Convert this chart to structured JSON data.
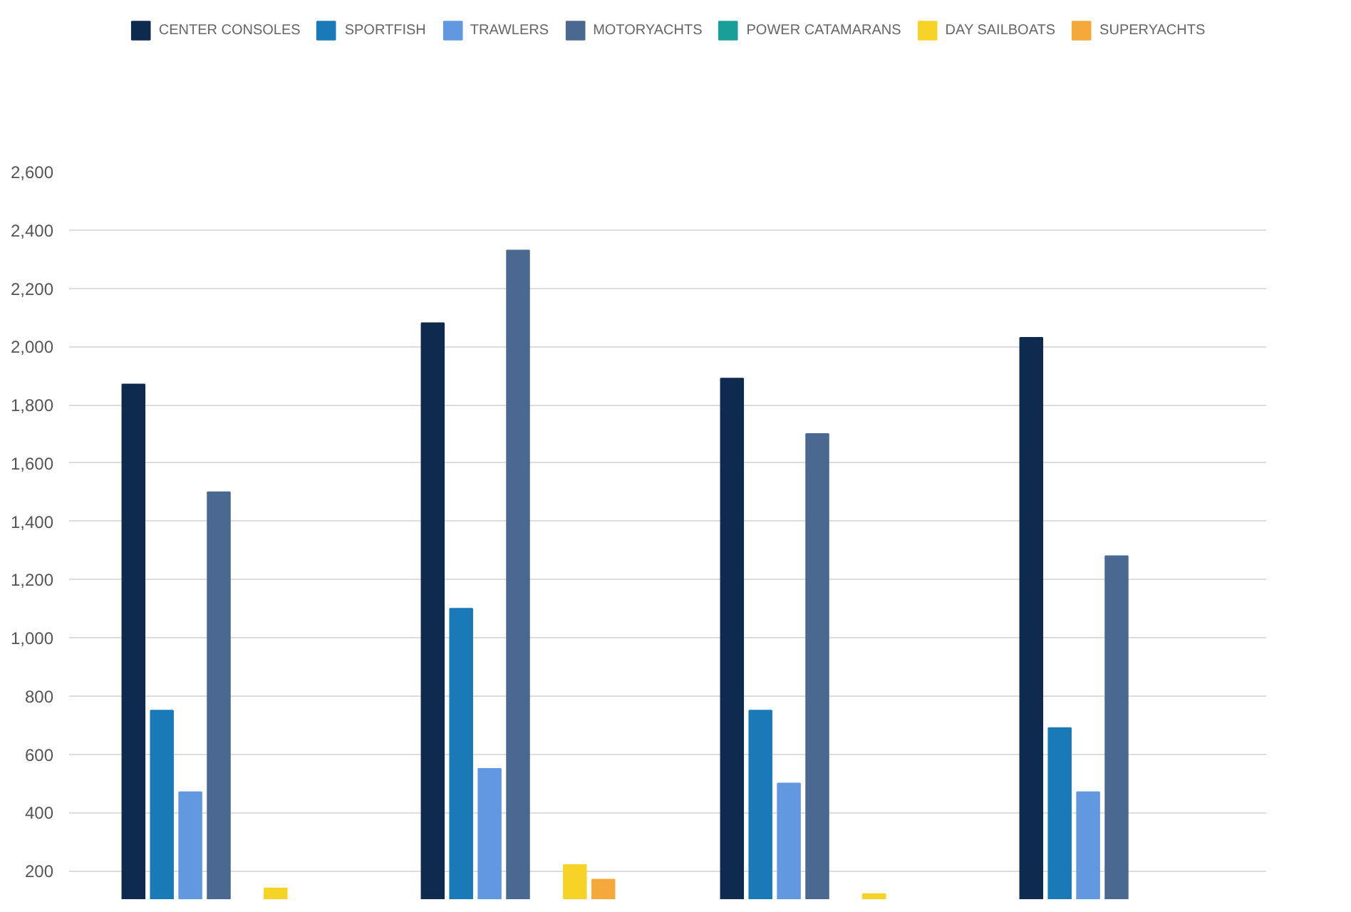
{
  "chart_data": {
    "type": "bar",
    "categories": [
      null,
      null,
      null,
      null
    ],
    "series": [
      {
        "name": "CENTER CONSOLES",
        "color": "#0f2a4f",
        "values": [
          1870,
          2080,
          1890,
          2030
        ]
      },
      {
        "name": "SPORTFISH",
        "color": "#1a7ab8",
        "values": [
          750,
          1100,
          750,
          690
        ]
      },
      {
        "name": "TRAWLERS",
        "color": "#6198e0",
        "values": [
          470,
          550,
          500,
          470
        ]
      },
      {
        "name": "MOTORYACHTS",
        "color": "#4a6890",
        "values": [
          1500,
          2330,
          1700,
          1280
        ]
      },
      {
        "name": "POWER CATAMARANS",
        "color": "#1a9e9a",
        "values": [
          null,
          null,
          null,
          null
        ]
      },
      {
        "name": "DAY SAILBOATS",
        "color": "#f5d327",
        "values": [
          140,
          220,
          120,
          null
        ]
      },
      {
        "name": "SUPERYACHTS",
        "color": "#f5a93a",
        "values": [
          null,
          170,
          null,
          null
        ]
      }
    ],
    "ylim": [
      100,
      2600
    ],
    "yticks": [
      {
        "value": 200,
        "label": "200"
      },
      {
        "value": 400,
        "label": "400"
      },
      {
        "value": 600,
        "label": "600"
      },
      {
        "value": 800,
        "label": "800"
      },
      {
        "value": 1000,
        "label": "1,000"
      },
      {
        "value": 1200,
        "label": "1,200"
      },
      {
        "value": 1400,
        "label": "1,400"
      },
      {
        "value": 1600,
        "label": "1,600"
      },
      {
        "value": 1800,
        "label": "1,800"
      },
      {
        "value": 2000,
        "label": "2,000"
      },
      {
        "value": 2200,
        "label": "2,200"
      },
      {
        "value": 2400,
        "label": "2,400"
      },
      {
        "value": 2600,
        "label": "2,600"
      }
    ],
    "grid": "y",
    "legend": "top",
    "tick_labels": "y"
  }
}
